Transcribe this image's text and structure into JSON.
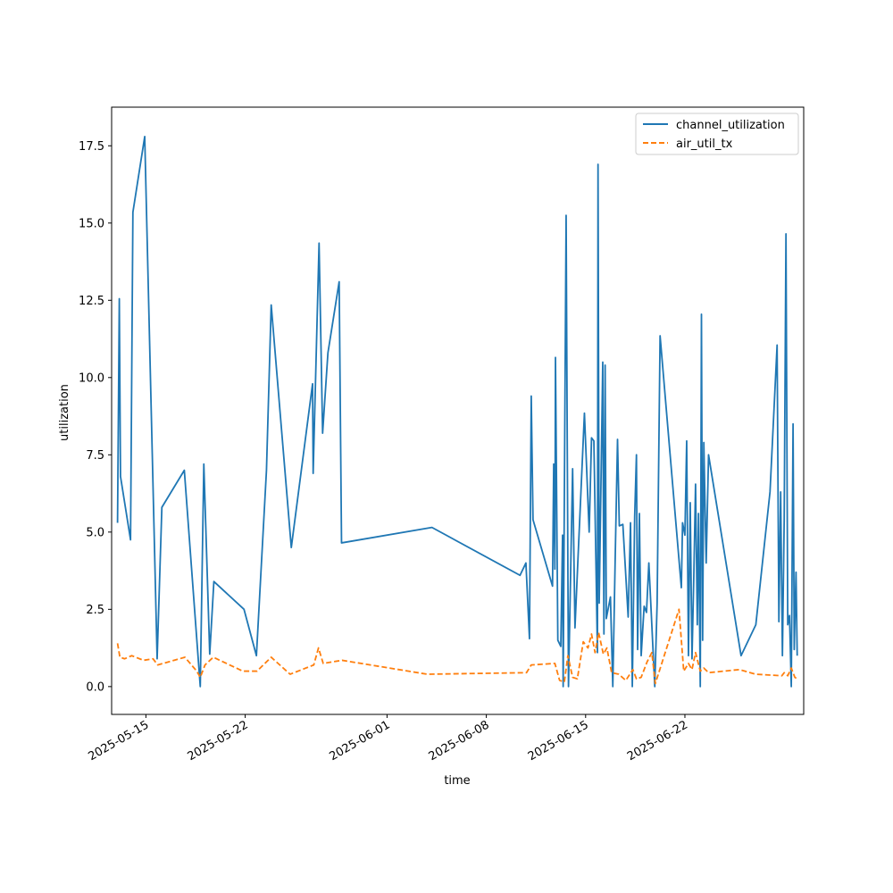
{
  "chart_data": {
    "type": "line",
    "title": "",
    "xlabel": "time",
    "ylabel": "utilization",
    "x_ticks": [
      "2025-05-15",
      "2025-05-22",
      "2025-06-01",
      "2025-06-08",
      "2025-06-15",
      "2025-06-22"
    ],
    "y_ticks": [
      "0.0",
      "2.5",
      "5.0",
      "7.5",
      "10.0",
      "12.5",
      "15.0",
      "17.5"
    ],
    "xlim": [
      "2025-05-12T14:00",
      "2025-06-30T09:00"
    ],
    "ylim": [
      -0.9,
      18.75
    ],
    "grid": false,
    "legend": {
      "position": "top-right"
    },
    "series": [
      {
        "name": "channel_utilization",
        "color": "#1f77b4",
        "style": "solid",
        "points": [
          [
            "2025-05-13T00:00",
            5.3
          ],
          [
            "2025-05-13T03:00",
            12.55
          ],
          [
            "2025-05-13T05:00",
            6.8
          ],
          [
            "2025-05-13T22:00",
            4.75
          ],
          [
            "2025-05-14T02:00",
            15.35
          ],
          [
            "2025-05-14T22:00",
            17.8
          ],
          [
            "2025-05-15T19:00",
            0.9
          ],
          [
            "2025-05-16T03:00",
            5.8
          ],
          [
            "2025-05-17T17:00",
            7.0
          ],
          [
            "2025-05-18T20:00",
            0.0
          ],
          [
            "2025-05-19T02:00",
            7.2
          ],
          [
            "2025-05-19T12:00",
            1.05
          ],
          [
            "2025-05-19T19:00",
            3.4
          ],
          [
            "2025-05-21T22:00",
            2.5
          ],
          [
            "2025-05-22T19:00",
            1.0
          ],
          [
            "2025-05-23T12:00",
            7.0
          ],
          [
            "2025-05-23T20:00",
            12.35
          ],
          [
            "2025-05-25T06:00",
            4.5
          ],
          [
            "2025-05-26T18:00",
            9.8
          ],
          [
            "2025-05-26T19:00",
            6.9
          ],
          [
            "2025-05-27T05:00",
            14.35
          ],
          [
            "2025-05-27T11:00",
            8.2
          ],
          [
            "2025-05-27T20:00",
            10.8
          ],
          [
            "2025-05-28T15:00",
            13.1
          ],
          [
            "2025-05-28T19:00",
            4.65
          ],
          [
            "2025-06-04T04:00",
            5.15
          ],
          [
            "2025-06-10T09:00",
            3.6
          ],
          [
            "2025-06-10T19:00",
            4.0
          ],
          [
            "2025-06-11T01:00",
            1.55
          ],
          [
            "2025-06-11T04:00",
            9.4
          ],
          [
            "2025-06-11T07:00",
            5.4
          ],
          [
            "2025-06-12T16:00",
            3.25
          ],
          [
            "2025-06-12T18:00",
            7.2
          ],
          [
            "2025-06-12T20:00",
            3.8
          ],
          [
            "2025-06-12T21:00",
            10.65
          ],
          [
            "2025-06-13T01:00",
            1.5
          ],
          [
            "2025-06-13T06:00",
            1.3
          ],
          [
            "2025-06-13T09:00",
            4.9
          ],
          [
            "2025-06-13T10:00",
            0.0
          ],
          [
            "2025-06-13T15:00",
            15.25
          ],
          [
            "2025-06-13T19:00",
            0.0
          ],
          [
            "2025-06-14T02:00",
            7.05
          ],
          [
            "2025-06-14T06:00",
            1.9
          ],
          [
            "2025-06-14T11:00",
            4.1
          ],
          [
            "2025-06-14T22:00",
            8.85
          ],
          [
            "2025-06-15T06:00",
            5.0
          ],
          [
            "2025-06-15T10:00",
            8.05
          ],
          [
            "2025-06-15T14:00",
            7.95
          ],
          [
            "2025-06-15T20:00",
            1.1
          ],
          [
            "2025-06-15T21:00",
            16.9
          ],
          [
            "2025-06-15T23:00",
            2.7
          ],
          [
            "2025-06-16T05:00",
            10.5
          ],
          [
            "2025-06-16T07:00",
            1.7
          ],
          [
            "2025-06-16T09:00",
            10.4
          ],
          [
            "2025-06-16T11:00",
            2.2
          ],
          [
            "2025-06-16T18:00",
            2.9
          ],
          [
            "2025-06-16T22:00",
            0.0
          ],
          [
            "2025-06-17T02:00",
            4.1
          ],
          [
            "2025-06-17T06:00",
            8.0
          ],
          [
            "2025-06-17T09:00",
            5.2
          ],
          [
            "2025-06-17T15:00",
            5.25
          ],
          [
            "2025-06-18T00:00",
            2.25
          ],
          [
            "2025-06-18T04:00",
            5.3
          ],
          [
            "2025-06-18T07:00",
            0.0
          ],
          [
            "2025-06-18T11:00",
            5.5
          ],
          [
            "2025-06-18T14:00",
            7.5
          ],
          [
            "2025-06-18T16:00",
            1.2
          ],
          [
            "2025-06-18T19:00",
            5.6
          ],
          [
            "2025-06-18T22:00",
            1.0
          ],
          [
            "2025-06-19T03:00",
            2.6
          ],
          [
            "2025-06-19T07:00",
            2.4
          ],
          [
            "2025-06-19T11:00",
            4.0
          ],
          [
            "2025-06-19T16:00",
            2.0
          ],
          [
            "2025-06-19T21:00",
            0.0
          ],
          [
            "2025-06-20T01:00",
            2.7
          ],
          [
            "2025-06-20T06:00",
            11.35
          ],
          [
            "2025-06-21T18:00",
            3.2
          ],
          [
            "2025-06-21T20:00",
            5.3
          ],
          [
            "2025-06-22T00:00",
            4.9
          ],
          [
            "2025-06-22T03:00",
            7.95
          ],
          [
            "2025-06-22T06:00",
            1.0
          ],
          [
            "2025-06-22T09:00",
            5.95
          ],
          [
            "2025-06-22T12:00",
            0.9
          ],
          [
            "2025-06-22T15:00",
            3.5
          ],
          [
            "2025-06-22T18:00",
            6.55
          ],
          [
            "2025-06-22T21:00",
            2.0
          ],
          [
            "2025-06-22T23:00",
            5.6
          ],
          [
            "2025-06-23T02:00",
            0.0
          ],
          [
            "2025-06-23T04:00",
            12.05
          ],
          [
            "2025-06-23T06:00",
            1.5
          ],
          [
            "2025-06-23T08:00",
            7.9
          ],
          [
            "2025-06-23T12:00",
            4.0
          ],
          [
            "2025-06-23T16:00",
            7.5
          ],
          [
            "2025-06-25T23:00",
            1.0
          ],
          [
            "2025-06-27T00:00",
            2.0
          ],
          [
            "2025-06-28T00:00",
            6.3
          ],
          [
            "2025-06-28T12:00",
            11.05
          ],
          [
            "2025-06-28T15:00",
            2.1
          ],
          [
            "2025-06-28T18:00",
            6.3
          ],
          [
            "2025-06-28T21:00",
            1.0
          ],
          [
            "2025-06-29T00:00",
            5.4
          ],
          [
            "2025-06-29T03:00",
            14.65
          ],
          [
            "2025-06-29T06:00",
            2.0
          ],
          [
            "2025-06-29T09:00",
            2.3
          ],
          [
            "2025-06-29T12:00",
            0.0
          ],
          [
            "2025-06-29T15:00",
            8.5
          ],
          [
            "2025-06-29T17:00",
            1.2
          ],
          [
            "2025-06-29T20:00",
            3.7
          ],
          [
            "2025-06-29T22:00",
            1.0
          ]
        ]
      },
      {
        "name": "air_util_tx",
        "color": "#ff7f0e",
        "style": "dashed",
        "points": [
          [
            "2025-05-13T00:00",
            1.4
          ],
          [
            "2025-05-13T04:00",
            0.95
          ],
          [
            "2025-05-13T12:00",
            0.9
          ],
          [
            "2025-05-14T00:00",
            1.0
          ],
          [
            "2025-05-14T20:00",
            0.85
          ],
          [
            "2025-05-15T12:00",
            0.9
          ],
          [
            "2025-05-15T20:00",
            0.7
          ],
          [
            "2025-05-17T18:00",
            0.95
          ],
          [
            "2025-05-18T14:00",
            0.5
          ],
          [
            "2025-05-18T20:00",
            0.3
          ],
          [
            "2025-05-19T04:00",
            0.7
          ],
          [
            "2025-05-19T18:00",
            0.95
          ],
          [
            "2025-05-21T20:00",
            0.5
          ],
          [
            "2025-05-22T20:00",
            0.5
          ],
          [
            "2025-05-23T20:00",
            0.95
          ],
          [
            "2025-05-25T04:00",
            0.4
          ],
          [
            "2025-05-26T20:00",
            0.7
          ],
          [
            "2025-05-27T04:00",
            1.25
          ],
          [
            "2025-05-27T12:00",
            0.75
          ],
          [
            "2025-05-28T20:00",
            0.85
          ],
          [
            "2025-06-03T20:00",
            0.4
          ],
          [
            "2025-06-10T20:00",
            0.45
          ],
          [
            "2025-06-11T04:00",
            0.7
          ],
          [
            "2025-06-12T20:00",
            0.75
          ],
          [
            "2025-06-13T04:00",
            0.2
          ],
          [
            "2025-06-13T12:00",
            0.15
          ],
          [
            "2025-06-13T18:00",
            1.0
          ],
          [
            "2025-06-14T02:00",
            0.3
          ],
          [
            "2025-06-14T10:00",
            0.25
          ],
          [
            "2025-06-14T20:00",
            1.45
          ],
          [
            "2025-06-15T04:00",
            1.25
          ],
          [
            "2025-06-15T10:00",
            1.7
          ],
          [
            "2025-06-15T16:00",
            1.1
          ],
          [
            "2025-06-15T22:00",
            1.75
          ],
          [
            "2025-06-16T06:00",
            1.05
          ],
          [
            "2025-06-16T12:00",
            1.25
          ],
          [
            "2025-06-16T20:00",
            0.45
          ],
          [
            "2025-06-17T08:00",
            0.4
          ],
          [
            "2025-06-17T20:00",
            0.2
          ],
          [
            "2025-06-18T08:00",
            0.55
          ],
          [
            "2025-06-18T14:00",
            0.25
          ],
          [
            "2025-06-18T22:00",
            0.3
          ],
          [
            "2025-06-19T08:00",
            0.8
          ],
          [
            "2025-06-19T16:00",
            1.1
          ],
          [
            "2025-06-19T22:00",
            0.1
          ],
          [
            "2025-06-21T14:00",
            2.5
          ],
          [
            "2025-06-21T22:00",
            0.5
          ],
          [
            "2025-06-22T06:00",
            0.75
          ],
          [
            "2025-06-22T12:00",
            0.55
          ],
          [
            "2025-06-22T18:00",
            1.1
          ],
          [
            "2025-06-23T02:00",
            0.5
          ],
          [
            "2025-06-23T08:00",
            0.6
          ],
          [
            "2025-06-23T16:00",
            0.45
          ],
          [
            "2025-06-25T20:00",
            0.55
          ],
          [
            "2025-06-27T00:00",
            0.4
          ],
          [
            "2025-06-28T20:00",
            0.35
          ],
          [
            "2025-06-29T00:00",
            0.45
          ],
          [
            "2025-06-29T06:00",
            0.35
          ],
          [
            "2025-06-29T12:00",
            0.6
          ],
          [
            "2025-06-29T18:00",
            0.3
          ],
          [
            "2025-06-29T22:00",
            0.25
          ]
        ]
      }
    ]
  }
}
